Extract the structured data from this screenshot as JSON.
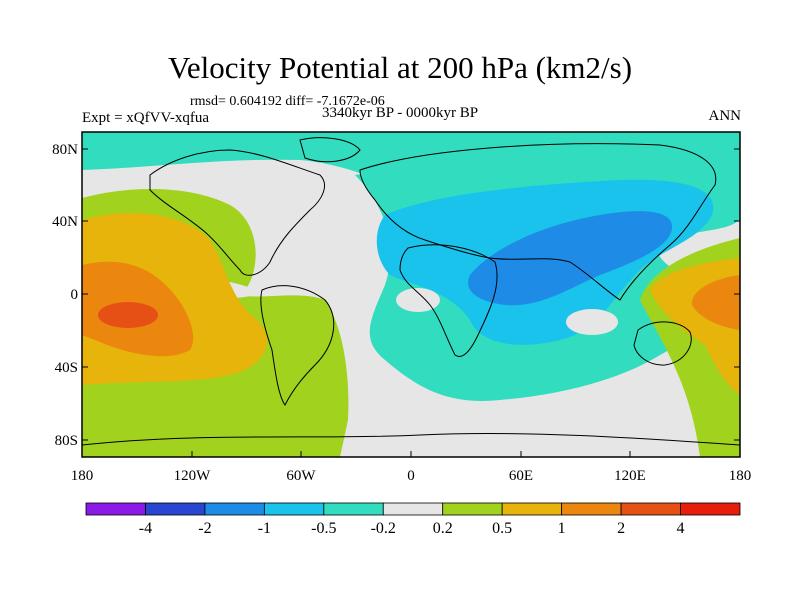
{
  "figure": {
    "title": "Velocity Potential at 200 hPa (km2/s)",
    "stats": "rmsd= 0.604192 diff= -7.1672e-06",
    "experiment": "Expt = xQfVV-xqfua",
    "period": "3340kyr BP - 0000kyr BP",
    "season": "ANN"
  },
  "axes": {
    "y_ticks": [
      "80N",
      "40N",
      "0",
      "40S",
      "80S"
    ],
    "x_ticks": [
      "180",
      "120W",
      "60W",
      "0",
      "60E",
      "120E",
      "180"
    ]
  },
  "colorbar": {
    "labels": [
      "-4",
      "-2",
      "-1",
      "-0.5",
      "-0.2",
      "0.2",
      "0.5",
      "1",
      "2",
      "4"
    ],
    "colors": [
      "#8c1ae6",
      "#2846d2",
      "#1e8ce6",
      "#19c3eb",
      "#32dcbe",
      "#e6e6e6",
      "#a0d21e",
      "#e6b40a",
      "#eb870f",
      "#e65014",
      "#e61e0a"
    ]
  }
}
